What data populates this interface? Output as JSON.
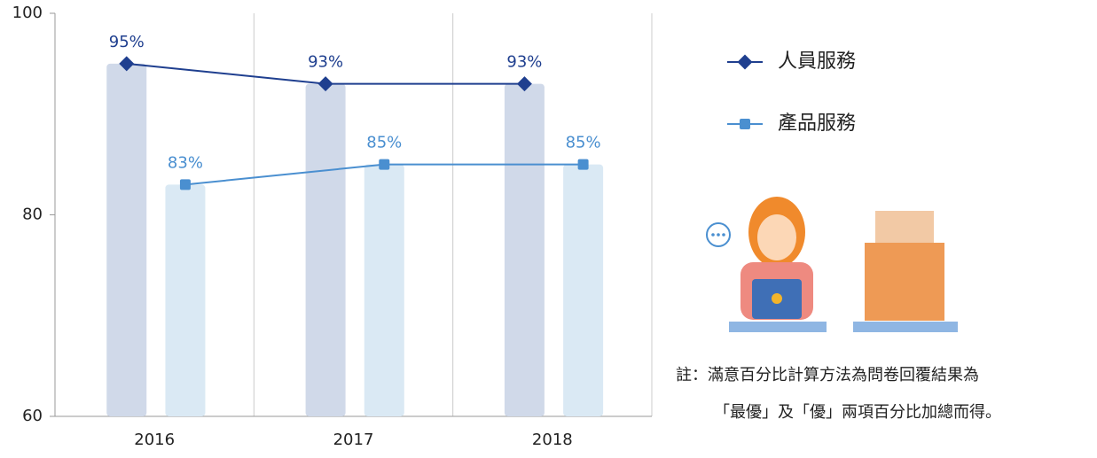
{
  "chart_data": {
    "type": "bar-line",
    "categories": [
      "2016",
      "2017",
      "2018"
    ],
    "series": [
      {
        "name": "人員服務",
        "color": "#1f3f8f",
        "bar_color": "#d0d9e9",
        "values": [
          95,
          93,
          93
        ],
        "value_labels": [
          "95%",
          "93%",
          "93%"
        ]
      },
      {
        "name": "產品服務",
        "color": "#4a8fd0",
        "bar_color": "#dae9f4",
        "values": [
          83,
          85,
          85
        ],
        "value_labels": [
          "83%",
          "85%",
          "85%"
        ]
      }
    ],
    "ylim": [
      60,
      100
    ],
    "yticks": [
      60,
      80,
      100
    ],
    "grid": true
  },
  "note": [
    "註：滿意百分比計算方法為問卷回覆結果為",
    "「最優」及「優」兩項百分比加總而得。"
  ]
}
